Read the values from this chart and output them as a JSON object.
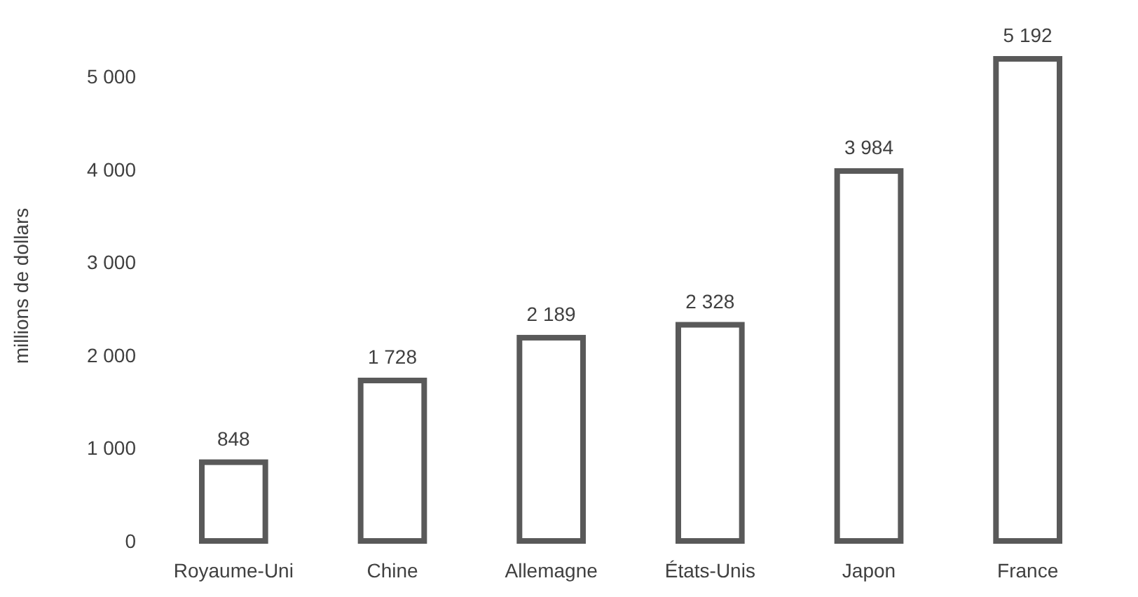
{
  "chart_data": {
    "type": "bar",
    "ylabel": "millions de dollars",
    "categories": [
      "Royaume-Uni",
      "Chine",
      "Allemagne",
      "États-Unis",
      "Japon",
      "France"
    ],
    "values": [
      848,
      1728,
      2189,
      2328,
      3984,
      5192
    ],
    "value_labels": [
      "848",
      "1 728",
      "2 189",
      "2 328",
      "3 984",
      "5 192"
    ],
    "color": "#595959",
    "ylim": [
      0,
      5192
    ],
    "yticks": [
      0,
      {
        "value": 1000,
        "label": "1 000"
      },
      {
        "value": 2000,
        "label": "2 000"
      },
      {
        "value": 3000,
        "label": "3 000"
      },
      {
        "value": 4000,
        "label": "4 000"
      },
      {
        "value": 5000,
        "label": "5 000"
      }
    ],
    "grid": false
  }
}
